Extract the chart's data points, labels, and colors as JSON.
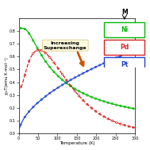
{
  "title": "",
  "xlabel": "Temperature (K)",
  "ylabel": "χₘT(emu K mol⁻¹)",
  "xlim": [
    0,
    300
  ],
  "ylim": [
    0.0,
    0.9
  ],
  "yticks": [
    0.0,
    0.1,
    0.2,
    0.3,
    0.4,
    0.5,
    0.6,
    0.7,
    0.8
  ],
  "xticks": [
    0,
    50,
    100,
    150,
    200,
    250,
    300
  ],
  "legend_labels": [
    "Ni",
    "Pd",
    "Pt"
  ],
  "legend_colors": [
    "#00bb00",
    "#dd2222",
    "#2244cc"
  ],
  "annotation_text": "Increasing\nSuperexchange",
  "annotation_arrow_color": "#cc5500",
  "background_color": "#ffffff",
  "figsize": [
    1.89,
    1.89
  ],
  "dpi": 100,
  "curve_lw": 0.9,
  "scatter_size": 3,
  "T_max": 300
}
